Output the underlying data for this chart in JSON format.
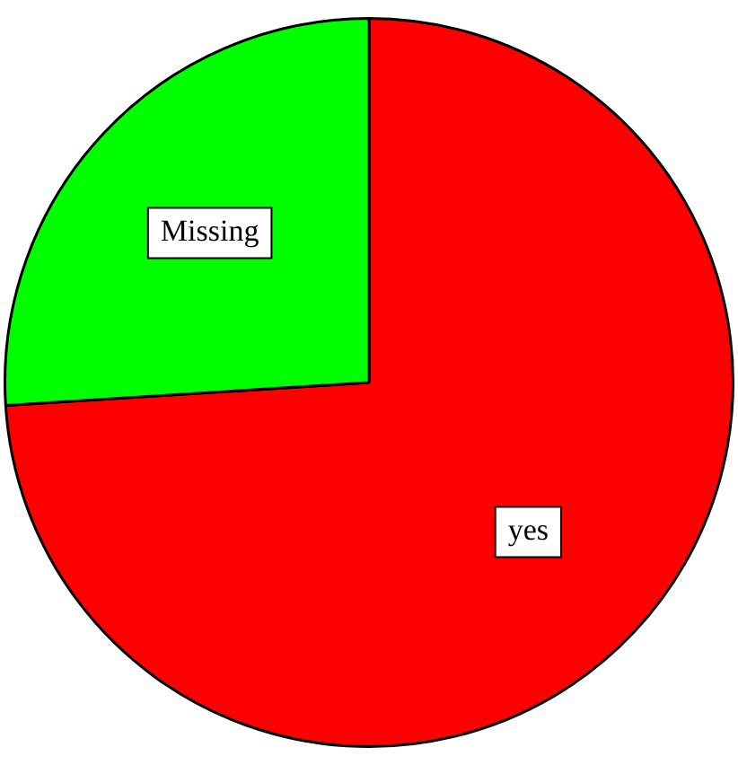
{
  "chart_data": {
    "type": "pie",
    "categories": [
      "yes",
      "Missing"
    ],
    "values": [
      74,
      26
    ],
    "colors": [
      "#ff0000",
      "#00ff00"
    ],
    "legend": false
  }
}
